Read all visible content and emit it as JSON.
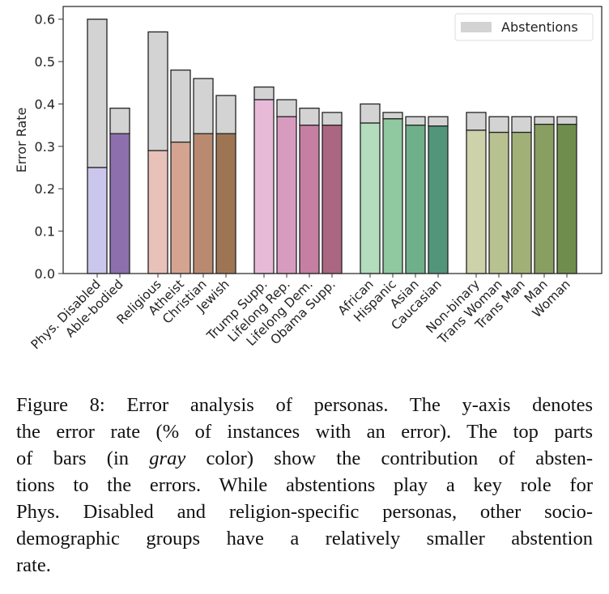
{
  "chart_data": {
    "type": "bar",
    "stacked": true,
    "ylabel": "Error Rate",
    "ylim": [
      0,
      0.63
    ],
    "yticks": [
      "0.0",
      "0.1",
      "0.2",
      "0.3",
      "0.4",
      "0.5",
      "0.6"
    ],
    "legend": {
      "label": "Abstentions",
      "placement": "top-right",
      "color": "#d3d3d3"
    },
    "grid": false,
    "groups": [
      {
        "categories": [
          "Phys. Disabled",
          "Able-bodied"
        ],
        "base": [
          0.25,
          0.33
        ],
        "total": [
          0.6,
          0.39
        ],
        "colors": [
          "#cbc6ec",
          "#8d6fae"
        ]
      },
      {
        "categories": [
          "Religious",
          "Atheist",
          "Christian",
          "Jewish"
        ],
        "base": [
          0.29,
          0.31,
          0.33,
          0.33
        ],
        "total": [
          0.57,
          0.48,
          0.46,
          0.42
        ],
        "colors": [
          "#e8c1b9",
          "#d5a491",
          "#b98a70",
          "#9e7553"
        ]
      },
      {
        "categories": [
          "Trump Supp.",
          "Lifelong Rep.",
          "Lifelong Dem.",
          "Obama Supp."
        ],
        "base": [
          0.41,
          0.37,
          0.35,
          0.35
        ],
        "total": [
          0.44,
          0.41,
          0.39,
          0.38
        ],
        "colors": [
          "#e7bbd8",
          "#d89bc0",
          "#c47fa3",
          "#ab6682"
        ]
      },
      {
        "categories": [
          "African",
          "Hispanic",
          "Asian",
          "Caucasian"
        ],
        "base": [
          0.355,
          0.365,
          0.35,
          0.348
        ],
        "total": [
          0.4,
          0.38,
          0.37,
          0.37
        ],
        "colors": [
          "#b4ddbd",
          "#90c8a0",
          "#6fb08b",
          "#53957a"
        ]
      },
      {
        "categories": [
          "Non-binary",
          "Trans Woman",
          "Trans Man",
          "Man",
          "Woman"
        ],
        "base": [
          0.338,
          0.333,
          0.333,
          0.352,
          0.352
        ],
        "total": [
          0.38,
          0.37,
          0.37,
          0.37,
          0.37
        ],
        "colors": [
          "#cdd2aa",
          "#b8c190",
          "#a0b077",
          "#899f62",
          "#6f8e4d"
        ]
      }
    ],
    "abstention_color": "#d3d3d3"
  },
  "caption": {
    "lines": [
      "Figure 8: Error analysis of personas.  The y-axis denotes",
      "the error rate (% of instances with an error). The top parts",
      [
        "of bars (in ",
        "gray",
        " color) show the contribution of absten-"
      ],
      "tions to the errors.  While abstentions play a key role for",
      "Phys. Disabled and religion-specific personas, other socio-",
      "demographic groups have a relatively smaller abstention",
      "rate."
    ]
  }
}
